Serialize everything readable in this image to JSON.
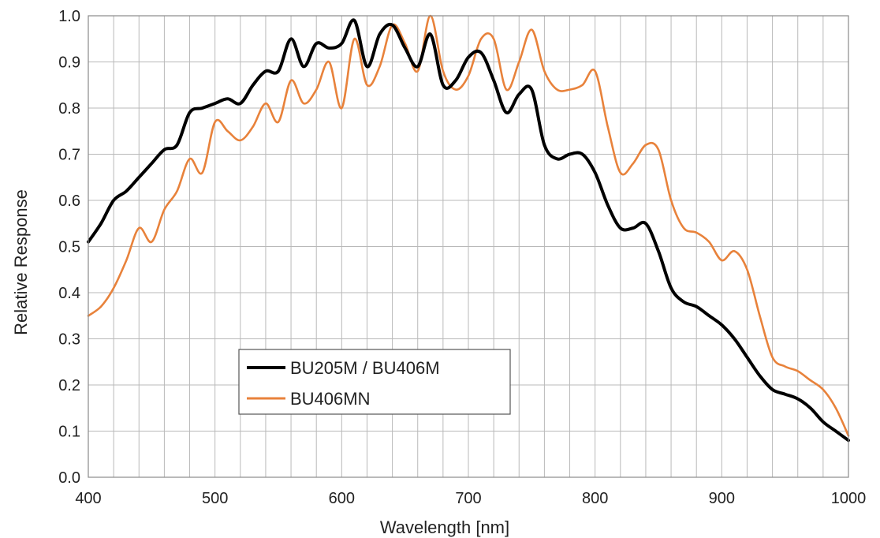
{
  "chart_data": {
    "type": "line",
    "title": "",
    "xlabel": "Wavelength [nm]",
    "ylabel": "Relative Response",
    "xlim": [
      400,
      1000
    ],
    "ylim": [
      0.0,
      1.0
    ],
    "x_ticks": [
      "400",
      "500",
      "600",
      "700",
      "800",
      "900",
      "1000"
    ],
    "y_ticks": [
      "0.0",
      "0.1",
      "0.2",
      "0.3",
      "0.4",
      "0.5",
      "0.6",
      "0.7",
      "0.8",
      "0.9",
      "1.0"
    ],
    "grid": true,
    "legend_position": "lower-left",
    "series": [
      {
        "name": "BU205M / BU406M",
        "color": "#000000",
        "x": [
          400,
          410,
          420,
          430,
          440,
          450,
          460,
          470,
          480,
          490,
          500,
          510,
          520,
          530,
          540,
          550,
          560,
          570,
          580,
          590,
          600,
          610,
          620,
          630,
          640,
          650,
          660,
          670,
          680,
          690,
          700,
          710,
          720,
          730,
          740,
          750,
          760,
          770,
          780,
          790,
          800,
          810,
          820,
          830,
          840,
          850,
          860,
          870,
          880,
          890,
          900,
          910,
          920,
          930,
          940,
          950,
          960,
          970,
          980,
          990,
          1000
        ],
        "y": [
          0.51,
          0.55,
          0.6,
          0.62,
          0.65,
          0.68,
          0.71,
          0.72,
          0.79,
          0.8,
          0.81,
          0.82,
          0.81,
          0.85,
          0.88,
          0.88,
          0.95,
          0.89,
          0.94,
          0.93,
          0.94,
          0.99,
          0.89,
          0.96,
          0.98,
          0.93,
          0.89,
          0.96,
          0.85,
          0.86,
          0.91,
          0.92,
          0.86,
          0.79,
          0.83,
          0.84,
          0.72,
          0.69,
          0.7,
          0.7,
          0.66,
          0.59,
          0.54,
          0.54,
          0.55,
          0.49,
          0.41,
          0.38,
          0.37,
          0.35,
          0.33,
          0.3,
          0.26,
          0.22,
          0.19,
          0.18,
          0.17,
          0.15,
          0.12,
          0.1,
          0.08
        ]
      },
      {
        "name": "BU406MN",
        "color": "#e8823b",
        "x": [
          400,
          410,
          420,
          430,
          440,
          450,
          460,
          470,
          480,
          490,
          500,
          510,
          520,
          530,
          540,
          550,
          560,
          570,
          580,
          590,
          600,
          610,
          620,
          630,
          640,
          650,
          660,
          670,
          680,
          690,
          700,
          710,
          720,
          730,
          740,
          750,
          760,
          770,
          780,
          790,
          800,
          810,
          820,
          830,
          840,
          850,
          860,
          870,
          880,
          890,
          900,
          910,
          920,
          930,
          940,
          950,
          960,
          970,
          980,
          990,
          1000
        ],
        "y": [
          0.35,
          0.37,
          0.41,
          0.47,
          0.54,
          0.51,
          0.58,
          0.62,
          0.69,
          0.66,
          0.77,
          0.75,
          0.73,
          0.76,
          0.81,
          0.77,
          0.86,
          0.81,
          0.84,
          0.9,
          0.8,
          0.95,
          0.85,
          0.89,
          0.98,
          0.94,
          0.88,
          1.0,
          0.88,
          0.84,
          0.87,
          0.95,
          0.95,
          0.84,
          0.9,
          0.97,
          0.88,
          0.84,
          0.84,
          0.85,
          0.88,
          0.76,
          0.66,
          0.68,
          0.72,
          0.71,
          0.6,
          0.54,
          0.53,
          0.51,
          0.47,
          0.49,
          0.45,
          0.35,
          0.26,
          0.24,
          0.23,
          0.21,
          0.19,
          0.15,
          0.09
        ]
      }
    ]
  }
}
